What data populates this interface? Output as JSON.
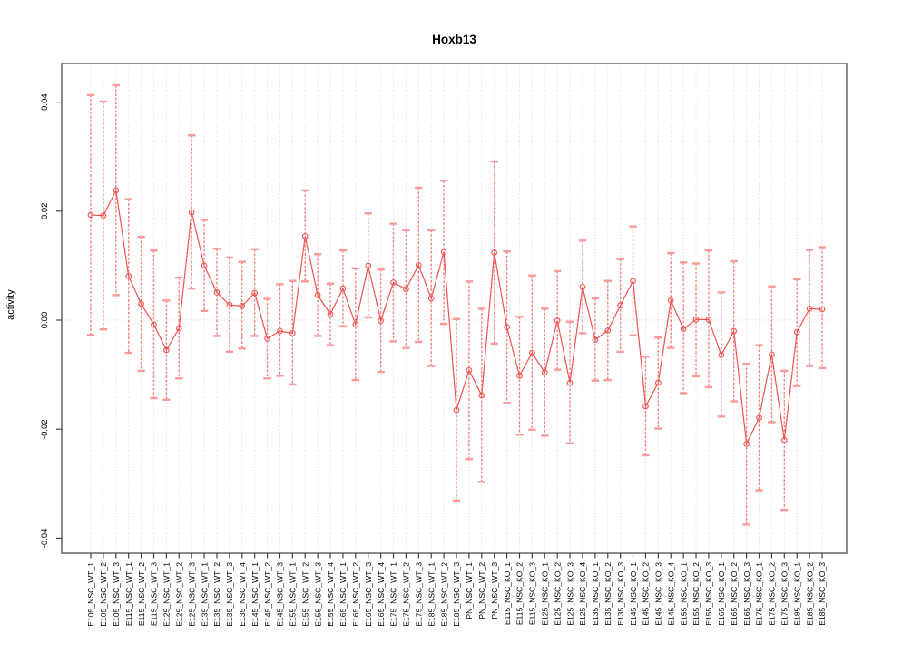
{
  "figure": {
    "title": "Hoxb13",
    "ylabel": "activity"
  },
  "chart_data": {
    "type": "line",
    "subtype": "point-estimates-with-symmetric-error-bars",
    "title": "Hoxb13",
    "xlabel": "",
    "ylabel": "activity",
    "ylim": [
      -0.0425,
      0.0468
    ],
    "yticks": [
      -0.04,
      -0.02,
      0.0,
      0.02,
      0.04
    ],
    "ytick_labels": [
      "-0.04",
      "-0.02",
      "0.00",
      "0.02",
      "0.04"
    ],
    "grid": "dotted light-gray vertical line at each category; dotted horizontal line at y=0",
    "legend_position": "none",
    "categories": [
      "E105_NSC_WT_1",
      "E105_NSC_WT_2",
      "E105_NSC_WT_3",
      "E115_NSC_WT_1",
      "E115_NSC_WT_2",
      "E115_NSC_WT_3",
      "E125_NSC_WT_1",
      "E125_NSC_WT_2",
      "E125_NSC_WT_3",
      "E135_NSC_WT_1",
      "E135_NSC_WT_2",
      "E135_NSC_WT_3",
      "E135_NSC_WT_4",
      "E145_NSC_WT_1",
      "E145_NSC_WT_2",
      "E145_NSC_WT_3",
      "E155_NSC_WT_1",
      "E155_NSC_WT_2",
      "E155_NSC_WT_3",
      "E155_NSC_WT_4",
      "E165_NSC_WT_1",
      "E165_NSC_WT_2",
      "E165_NSC_WT_3",
      "E165_NSC_WT_4",
      "E175_NSC_WT_1",
      "E175_NSC_WT_2",
      "E175_NSC_WT_3",
      "E185_NSC_WT_1",
      "E185_NSC_WT_2",
      "E185_NSC_WT_3",
      "PN_NSC_WT_1",
      "PN_NSC_WT_2",
      "PN_NSC_WT_3",
      "E115_NSC_KO_1",
      "E115_NSC_KO_2",
      "E115_NSC_KO_3",
      "E125_NSC_KO_1",
      "E125_NSC_KO_2",
      "E125_NSC_KO_3",
      "E125_NSC_KO_4",
      "E135_NSC_KO_1",
      "E135_NSC_KO_2",
      "E135_NSC_KO_3",
      "E145_NSC_KO_1",
      "E145_NSC_KO_2",
      "E145_NSC_KO_3",
      "E145_NSC_KO_4",
      "E155_NSC_KO_1",
      "E155_NSC_KO_2",
      "E155_NSC_KO_3",
      "E165_NSC_KO_1",
      "E165_NSC_KO_2",
      "E165_NSC_KO_3",
      "E175_NSC_KO_1",
      "E175_NSC_KO_2",
      "E175_NSC_KO_3",
      "E185_NSC_KO_1",
      "E185_NSC_KO_2",
      "E185_NSC_KO_3"
    ],
    "series": [
      {
        "name": "mean activity",
        "values": [
          0.0193,
          0.0192,
          0.0238,
          0.0081,
          0.003,
          -0.0008,
          -0.0055,
          -0.0015,
          0.0198,
          0.01,
          0.0051,
          0.0028,
          0.0026,
          0.005,
          -0.0034,
          -0.002,
          -0.0024,
          0.0154,
          0.0046,
          0.0011,
          0.0058,
          -0.0008,
          0.01,
          -0.0001,
          0.0069,
          0.0057,
          0.0101,
          0.004,
          0.0125,
          -0.0165,
          -0.0092,
          -0.0138,
          0.0124,
          -0.0013,
          -0.0102,
          -0.006,
          -0.0096,
          -0.0001,
          -0.0115,
          0.0061,
          -0.0036,
          -0.0019,
          0.0027,
          0.0072,
          -0.0158,
          -0.0115,
          0.0036,
          -0.0016,
          0.0001,
          0.0001,
          -0.0064,
          -0.002,
          -0.0227,
          -0.0179,
          -0.0063,
          -0.022,
          -0.0022,
          0.0021,
          0.002
        ]
      },
      {
        "name": "error bar upper",
        "values": [
          0.0413,
          0.0401,
          0.0431,
          0.0222,
          0.0153,
          0.0128,
          0.0036,
          0.0078,
          0.0339,
          0.0184,
          0.0131,
          0.0115,
          0.0107,
          0.013,
          0.0039,
          0.0066,
          0.0072,
          0.0238,
          0.0121,
          0.0067,
          0.0128,
          0.0095,
          0.0196,
          0.0093,
          0.0177,
          0.0165,
          0.0243,
          0.0165,
          0.0256,
          0.0002,
          0.0071,
          0.0021,
          0.0291,
          0.0126,
          0.0006,
          0.0082,
          0.0021,
          0.009,
          -0.0003,
          0.0146,
          0.004,
          0.0072,
          0.0112,
          0.0172,
          -0.0067,
          -0.0032,
          0.0123,
          0.0106,
          0.0104,
          0.0128,
          0.0051,
          0.0108,
          -0.008,
          -0.0046,
          0.0062,
          -0.0093,
          0.0075,
          0.0129,
          0.0134
        ]
      },
      {
        "name": "error bar lower",
        "values": [
          -0.0027,
          -0.0017,
          0.0046,
          -0.006,
          -0.0093,
          -0.0143,
          -0.0146,
          -0.0107,
          0.0058,
          0.0017,
          -0.0029,
          -0.0058,
          -0.0052,
          -0.0029,
          -0.0107,
          -0.0102,
          -0.0118,
          0.0071,
          -0.0029,
          -0.0046,
          -0.0011,
          -0.011,
          0.0005,
          -0.0095,
          -0.0039,
          -0.0051,
          -0.004,
          -0.0084,
          -0.0007,
          -0.0331,
          -0.0255,
          -0.0297,
          -0.0043,
          -0.0152,
          -0.021,
          -0.0201,
          -0.0212,
          -0.0091,
          -0.0226,
          -0.0024,
          -0.0111,
          -0.011,
          -0.0058,
          -0.0028,
          -0.0248,
          -0.0199,
          -0.0051,
          -0.0134,
          -0.0103,
          -0.0123,
          -0.0177,
          -0.0149,
          -0.0375,
          -0.0312,
          -0.0187,
          -0.0348,
          -0.0121,
          -0.0084,
          -0.0088
        ]
      }
    ],
    "colors": {
      "point": "#ef5350",
      "line": "#ef5350",
      "error_bar_stem": "#f97e7e",
      "error_bar_cap": "#fb9a9a",
      "grid": "#dcdcdc",
      "frame": "#7f7f7f",
      "tick": "#404040",
      "text": "#000000"
    }
  }
}
